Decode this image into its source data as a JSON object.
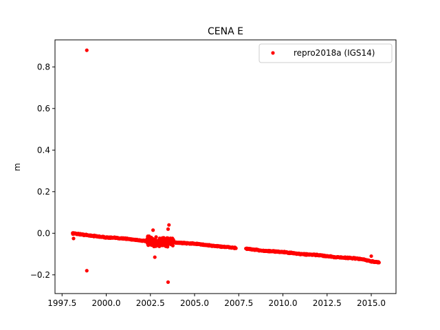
{
  "chart_data": {
    "type": "scatter",
    "title": "CENA E",
    "xlabel": "",
    "ylabel": "m",
    "xlim": [
      1997.1,
      2016.4
    ],
    "ylim": [
      -0.29,
      0.93
    ],
    "xticks": [
      1997.5,
      2000.0,
      2002.5,
      2005.0,
      2007.5,
      2010.0,
      2012.5,
      2015.0
    ],
    "xtick_labels": [
      "1997.5",
      "2000.0",
      "2002.5",
      "2005.0",
      "2007.5",
      "2010.0",
      "2012.5",
      "2015.0"
    ],
    "yticks": [
      -0.2,
      0.0,
      0.2,
      0.4,
      0.6,
      0.8
    ],
    "ytick_labels": [
      "−0.2",
      "0.0",
      "0.2",
      "0.4",
      "0.6",
      "0.8"
    ],
    "legend_position": "top-right",
    "series": [
      {
        "name": "repro2018a (IGS14)",
        "color": "#ff0000",
        "marker": "circle",
        "trend": {
          "x": [
            1998.1,
            1999.0,
            2000.0,
            2001.0,
            2002.0,
            2002.5,
            2003.0,
            2003.5,
            2004.0,
            2005.0,
            2006.0,
            2007.3,
            2008.0,
            2008.5,
            2009.0,
            2010.0,
            2011.0,
            2012.0,
            2013.0,
            2014.0,
            2014.5,
            2015.0,
            2015.45
          ],
          "y": [
            0.0,
            -0.01,
            -0.02,
            -0.025,
            -0.035,
            -0.04,
            -0.045,
            -0.04,
            -0.045,
            -0.05,
            -0.06,
            -0.07,
            -0.075,
            -0.08,
            -0.085,
            -0.09,
            -0.1,
            -0.105,
            -0.115,
            -0.12,
            -0.125,
            -0.135,
            -0.14
          ]
        },
        "cluster": {
          "x_range": [
            2002.3,
            2003.8
          ],
          "center_y": -0.045,
          "spread": 0.025
        },
        "gap": [
          2007.35,
          2007.9
        ],
        "outliers": [
          {
            "x": 1998.9,
            "y": 0.88
          },
          {
            "x": 1998.9,
            "y": -0.18
          },
          {
            "x": 2003.5,
            "y": -0.235
          },
          {
            "x": 2002.75,
            "y": -0.115
          },
          {
            "x": 2003.55,
            "y": 0.04
          },
          {
            "x": 2003.5,
            "y": 0.02
          },
          {
            "x": 2002.65,
            "y": 0.015
          },
          {
            "x": 1998.15,
            "y": -0.025
          },
          {
            "x": 2015.0,
            "y": -0.11
          }
        ]
      }
    ]
  }
}
